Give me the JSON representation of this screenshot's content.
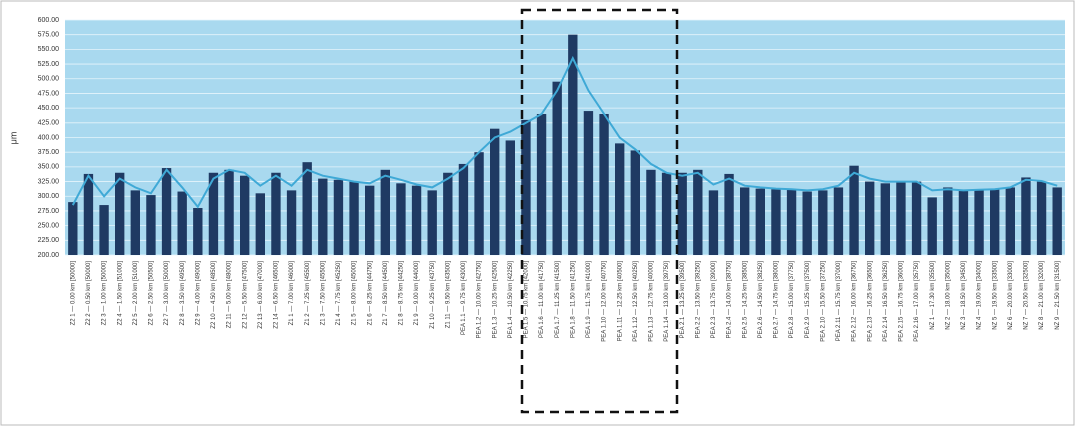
{
  "chart_data": {
    "type": "bar",
    "y_label": "μm",
    "categories": [
      "Z2 1 — 0.00 km [50000]",
      "Z2 2 — 0.50 km [50000]",
      "Z2 3 — 1.00 km [50000]",
      "Z2 4 — 1.50 km [51000]",
      "Z2 5 — 2.00 km [51000]",
      "Z2 6 — 2.50 km [50500]",
      "Z2 7 — 3.00 km [50000]",
      "Z2 8 — 3.50 km [49500]",
      "Z2 9 — 4.00 km [49000]",
      "Z2 10 — 4.50 km [48500]",
      "Z2 11 — 5.00 km [48000]",
      "Z2 12 — 5.50 km [47500]",
      "Z2 13 — 6.00 km [47000]",
      "Z2 14 — 6.50 km [46500]",
      "Z1 1 — 7.00 km [46000]",
      "Z1 2 — 7.25 km [45500]",
      "Z1 3 — 7.50 km [45500]",
      "Z1 4 — 7.75 km [45250]",
      "Z1 5 — 8.00 km [45000]",
      "Z1 6 — 8.25 km [44750]",
      "Z1 7 — 8.50 km [44500]",
      "Z1 8 — 8.75 km [44250]",
      "Z1 9 — 9.00 km [44000]",
      "Z1 10 — 9.25 km [43750]",
      "Z1 11 — 9.50 km [43500]",
      "PEA 1.1 — 9.75 km [43000]",
      "PEA 1.2 — 10.00 km [42750]",
      "PEA 1.3 — 10.25 km [42500]",
      "PEA 1.4 — 10.50 km [42250]",
      "PEA 1.5 — 10.75 km [42000]",
      "PEA 1.6 — 11.00 km [41750]",
      "PEA 1.7 — 11.25 km [41500]",
      "PEA 1.8 — 11.50 km [41250]",
      "PEA 1.9 — 11.75 km [41000]",
      "PEA 1.10 — 12.00 km [40750]",
      "PEA 1.11 — 12.25 km [40500]",
      "PEA 1.12 — 12.50 km [40250]",
      "PEA 1.13 — 12.75 km [40000]",
      "PEA 1.14 — 13.00 km [39750]",
      "PEA 2.1 — 13.25 km [39500]",
      "PEA 2.2 — 13.50 km [39250]",
      "PEA 2.3 — 13.75 km [39000]",
      "PEA 2.4 — 14.00 km [38750]",
      "PEA 2.5 — 14.25 km [38500]",
      "PEA 2.6 — 14.50 km [38250]",
      "PEA 2.7 — 14.75 km [38000]",
      "PEA 2.8 — 15.00 km [37750]",
      "PEA 2.9 — 15.25 km [37500]",
      "PEA 2.10 — 15.50 km [37250]",
      "PEA 2.11 — 15.75 km [37000]",
      "PEA 2.12 — 16.00 km [36750]",
      "PEA 2.13 — 16.25 km [36500]",
      "PEA 2.14 — 16.50 km [36250]",
      "PEA 2.15 — 16.75 km [36000]",
      "PEA 2.16 — 17.00 km [35750]",
      "NZ 1 — 17.30 km [35500]",
      "NZ 2 — 18.00 km [35000]",
      "NZ 3 — 18.50 km [34500]",
      "NZ 4 — 19.00 km [34000]",
      "NZ 5 — 19.50 km [33500]",
      "NZ 6 — 20.00 km [33000]",
      "NZ 7 — 20.50 km [32500]",
      "NZ 8 — 21.00 km [32000]",
      "NZ 9 — 21.50 km [31500]"
    ],
    "series": [
      {
        "type": "bar",
        "color": "#1f3a63",
        "values": [
          290,
          338,
          285,
          340,
          310,
          302,
          348,
          308,
          280,
          340,
          345,
          335,
          305,
          340,
          310,
          358,
          330,
          328,
          325,
          318,
          345,
          322,
          318,
          310,
          340,
          355,
          375,
          415,
          395,
          430,
          440,
          495,
          575,
          445,
          440,
          390,
          378,
          345,
          340,
          340,
          345,
          310,
          338,
          315,
          313,
          312,
          312,
          308,
          310,
          315,
          352,
          325,
          322,
          325,
          325,
          298,
          315,
          310,
          312,
          312,
          315,
          332,
          325,
          315
        ]
      },
      {
        "type": "line",
        "color": "#3fa9d6",
        "values": [
          285,
          335,
          300,
          330,
          315,
          305,
          345,
          315,
          282,
          330,
          345,
          340,
          318,
          335,
          318,
          345,
          335,
          330,
          325,
          322,
          335,
          328,
          320,
          315,
          330,
          348,
          375,
          400,
          410,
          425,
          440,
          480,
          535,
          480,
          440,
          400,
          380,
          355,
          340,
          335,
          340,
          320,
          330,
          318,
          315,
          313,
          312,
          310,
          312,
          318,
          340,
          330,
          325,
          325,
          325,
          310,
          312,
          310,
          311,
          312,
          315,
          328,
          326,
          318
        ]
      }
    ],
    "ylim": [
      200,
      600
    ],
    "yticks": [
      {
        "value": 200,
        "label": "200.00"
      },
      {
        "value": 225,
        "label": "225.00"
      },
      {
        "value": 250,
        "label": "250.00"
      },
      {
        "value": 275,
        "label": "275.00"
      },
      {
        "value": 300,
        "label": "300.00"
      },
      {
        "value": 325,
        "label": "325.00"
      },
      {
        "value": 350,
        "label": "350.00"
      },
      {
        "value": 375,
        "label": "375.00"
      },
      {
        "value": 400,
        "label": "400.00"
      },
      {
        "value": 425,
        "label": "425.00"
      },
      {
        "value": 450,
        "label": "450.00"
      },
      {
        "value": 475,
        "label": "475.00"
      },
      {
        "value": 500,
        "label": "500.00"
      },
      {
        "value": 525,
        "label": "525.00"
      },
      {
        "value": 550,
        "label": "550.00"
      },
      {
        "value": 575,
        "label": "575.00"
      },
      {
        "value": 600,
        "label": "600.00"
      }
    ],
    "grid": true
  }
}
